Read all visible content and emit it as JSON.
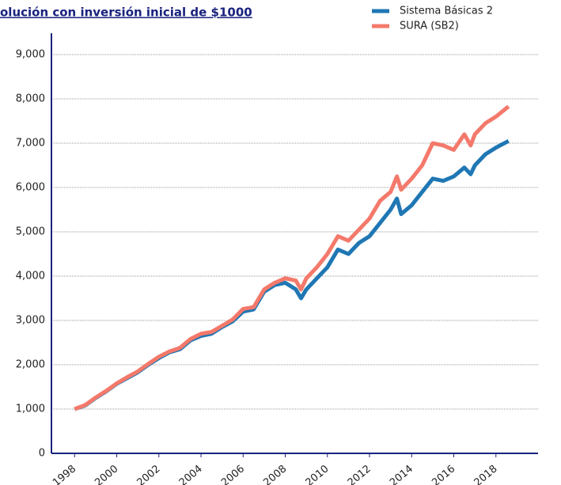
{
  "chart_data": {
    "type": "line",
    "title": "olución con inversión inicial de $1000",
    "x": [
      1998,
      1998.5,
      1999,
      1999.5,
      2000,
      2000.5,
      2001,
      2001.5,
      2002,
      2002.5,
      2003,
      2003.5,
      2004,
      2004.5,
      2005,
      2005.5,
      2006,
      2006.5,
      2007,
      2007.5,
      2008,
      2008.5,
      2008.75,
      2009,
      2009.5,
      2010,
      2010.5,
      2011,
      2011.5,
      2012,
      2012.5,
      2013,
      2013.3,
      2013.5,
      2014,
      2014.5,
      2015,
      2015.5,
      2016,
      2016.5,
      2016.8,
      2017,
      2017.5,
      2018,
      2018.6
    ],
    "series": [
      {
        "name": "Sistema Básicas 2",
        "color": "#1f77b4",
        "values": [
          1000,
          1080,
          1250,
          1400,
          1570,
          1700,
          1830,
          2000,
          2150,
          2280,
          2350,
          2550,
          2650,
          2700,
          2850,
          2980,
          3200,
          3250,
          3650,
          3800,
          3850,
          3700,
          3500,
          3700,
          3950,
          4200,
          4600,
          4500,
          4750,
          4900,
          5200,
          5500,
          5750,
          5400,
          5600,
          5900,
          6200,
          6150,
          6250,
          6450,
          6300,
          6500,
          6750,
          6900,
          7050
        ]
      },
      {
        "name": "SURA (SB2)",
        "color": "#f4796b",
        "values": [
          1000,
          1090,
          1260,
          1410,
          1580,
          1720,
          1850,
          2020,
          2180,
          2300,
          2380,
          2580,
          2700,
          2740,
          2880,
          3020,
          3260,
          3300,
          3700,
          3850,
          3950,
          3900,
          3700,
          3950,
          4200,
          4500,
          4900,
          4800,
          5050,
          5300,
          5700,
          5900,
          6250,
          5950,
          6200,
          6500,
          7000,
          6950,
          6850,
          7200,
          6950,
          7200,
          7450,
          7600,
          7830
        ]
      }
    ],
    "xlim": [
      1996.9,
      2020
    ],
    "xticks": [
      1998,
      2000,
      2002,
      2004,
      2006,
      2008,
      2010,
      2012,
      2014,
      2016,
      2018
    ],
    "ylim": [
      0,
      9000
    ],
    "yticks": [
      0,
      {
        "value": 1000,
        "label": "1,000"
      },
      {
        "value": 2000,
        "label": "2,000"
      },
      {
        "value": 3000,
        "label": "3,000"
      },
      {
        "value": 4000,
        "label": "4,000"
      },
      {
        "value": 5000,
        "label": "5,000"
      },
      {
        "value": 6000,
        "label": "6,000"
      },
      {
        "value": 7000,
        "label": "7,000"
      },
      {
        "value": 8000,
        "label": "8,000"
      },
      {
        "value": 9000,
        "label": "9,000"
      }
    ],
    "grid": true
  }
}
